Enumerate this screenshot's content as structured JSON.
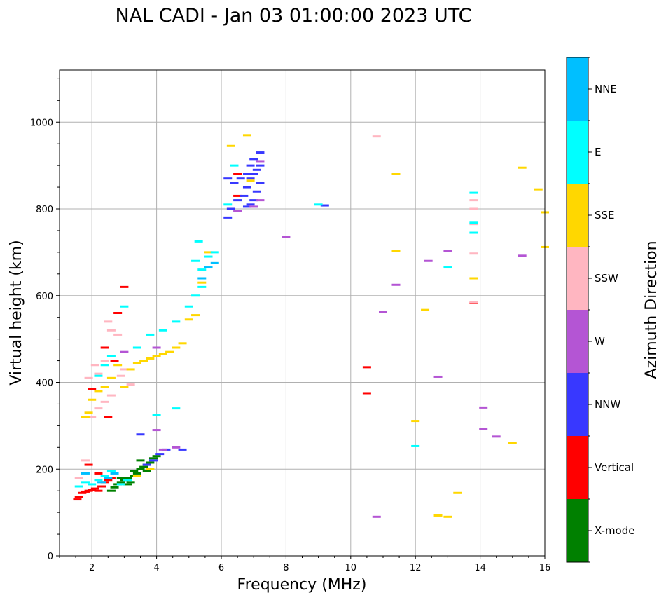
{
  "chart_data": {
    "type": "scatter",
    "title": "NAL CADI - Jan 03 01:00:00 2023 UTC",
    "xlabel": "Frequency (MHz)",
    "ylabel": "Virtual height (km)",
    "xlim": [
      1,
      16
    ],
    "ylim": [
      0,
      1120
    ],
    "xticks": [
      2,
      4,
      6,
      8,
      10,
      12,
      14,
      16
    ],
    "xtick_labels": [
      "2",
      "4",
      "6",
      "8",
      "10",
      "12",
      "14",
      "16"
    ],
    "yticks": [
      0,
      200,
      400,
      600,
      800,
      1000
    ],
    "ytick_labels": [
      "0",
      "200",
      "400",
      "600",
      "800",
      "1000"
    ],
    "grid": true,
    "colorbar": {
      "label": "Azimuth Direction",
      "categories": [
        "X-mode",
        "Vertical",
        "NNW",
        "W",
        "SSW",
        "SSE",
        "E",
        "NNE"
      ],
      "colors": [
        "#008000",
        "#ff0000",
        "#3838ff",
        "#b455d4",
        "#ffb6c1",
        "#ffd700",
        "#00ffff",
        "#00bfff"
      ]
    },
    "series": [
      {
        "name": "X-mode",
        "points": [
          [
            2.6,
            150
          ],
          [
            2.7,
            158
          ],
          [
            2.8,
            165
          ],
          [
            2.9,
            170
          ],
          [
            3.0,
            175
          ],
          [
            3.1,
            165
          ],
          [
            3.2,
            170
          ],
          [
            3.3,
            185
          ],
          [
            3.4,
            190
          ],
          [
            3.5,
            200
          ],
          [
            3.6,
            205
          ],
          [
            3.7,
            210
          ],
          [
            3.8,
            215
          ],
          [
            3.9,
            225
          ],
          [
            4.0,
            230
          ],
          [
            3.3,
            195
          ],
          [
            3.5,
            220
          ],
          [
            2.9,
            180
          ],
          [
            3.1,
            180
          ],
          [
            3.7,
            195
          ]
        ]
      },
      {
        "name": "Vertical",
        "points": [
          [
            1.55,
            130
          ],
          [
            1.6,
            135
          ],
          [
            1.7,
            145
          ],
          [
            1.8,
            148
          ],
          [
            1.9,
            150
          ],
          [
            2.0,
            152
          ],
          [
            2.1,
            155
          ],
          [
            2.2,
            150
          ],
          [
            2.3,
            160
          ],
          [
            2.4,
            170
          ],
          [
            2.5,
            175
          ],
          [
            2.6,
            180
          ],
          [
            2.2,
            190
          ],
          [
            1.9,
            210
          ],
          [
            2.5,
            320
          ],
          [
            2.8,
            560
          ],
          [
            3.0,
            620
          ],
          [
            2.0,
            385
          ],
          [
            10.5,
            375
          ],
          [
            10.5,
            435
          ],
          [
            13.8,
            583
          ],
          [
            6.5,
            830
          ],
          [
            6.5,
            880
          ],
          [
            2.7,
            450
          ],
          [
            2.4,
            480
          ]
        ]
      },
      {
        "name": "NNW",
        "points": [
          [
            3.5,
            280
          ],
          [
            3.7,
            210
          ],
          [
            3.9,
            220
          ],
          [
            4.1,
            235
          ],
          [
            4.3,
            245
          ],
          [
            4.8,
            245
          ],
          [
            6.2,
            780
          ],
          [
            6.3,
            800
          ],
          [
            6.5,
            820
          ],
          [
            6.7,
            830
          ],
          [
            6.8,
            850
          ],
          [
            6.9,
            870
          ],
          [
            7.0,
            880
          ],
          [
            7.1,
            890
          ],
          [
            7.2,
            900
          ],
          [
            6.8,
            880
          ],
          [
            6.9,
            900
          ],
          [
            7.0,
            915
          ],
          [
            6.9,
            810
          ],
          [
            7.1,
            840
          ],
          [
            7.2,
            860
          ],
          [
            6.6,
            870
          ],
          [
            6.2,
            870
          ],
          [
            7.0,
            820
          ],
          [
            7.2,
            930
          ],
          [
            9.2,
            808
          ],
          [
            6.4,
            860
          ],
          [
            6.8,
            805
          ]
        ]
      },
      {
        "name": "W",
        "points": [
          [
            4.0,
            290
          ],
          [
            4.2,
            245
          ],
          [
            4.6,
            250
          ],
          [
            4.0,
            480
          ],
          [
            7.0,
            805
          ],
          [
            7.2,
            820
          ],
          [
            8.0,
            735
          ],
          [
            10.8,
            90
          ],
          [
            11.0,
            563
          ],
          [
            11.4,
            625
          ],
          [
            12.4,
            680
          ],
          [
            12.7,
            413
          ],
          [
            13.0,
            703
          ],
          [
            14.1,
            342
          ],
          [
            14.1,
            293
          ],
          [
            14.5,
            275
          ],
          [
            15.3,
            692
          ],
          [
            7.2,
            910
          ],
          [
            6.5,
            795
          ],
          [
            3.0,
            470
          ]
        ]
      },
      {
        "name": "SSW",
        "points": [
          [
            1.6,
            180
          ],
          [
            1.8,
            220
          ],
          [
            2.0,
            320
          ],
          [
            2.2,
            340
          ],
          [
            2.4,
            355
          ],
          [
            2.6,
            370
          ],
          [
            2.2,
            420
          ],
          [
            2.4,
            450
          ],
          [
            2.6,
            520
          ],
          [
            2.8,
            510
          ],
          [
            3.0,
            430
          ],
          [
            3.2,
            395
          ],
          [
            1.9,
            410
          ],
          [
            2.1,
            440
          ],
          [
            10.8,
            967
          ],
          [
            13.8,
            820
          ],
          [
            13.8,
            800
          ],
          [
            13.8,
            697
          ],
          [
            13.8,
            585
          ],
          [
            13.8,
            765
          ],
          [
            2.5,
            540
          ],
          [
            2.9,
            415
          ]
        ]
      },
      {
        "name": "SSE",
        "points": [
          [
            1.8,
            320
          ],
          [
            1.9,
            330
          ],
          [
            2.0,
            360
          ],
          [
            2.2,
            380
          ],
          [
            2.4,
            390
          ],
          [
            2.6,
            410
          ],
          [
            2.8,
            440
          ],
          [
            3.0,
            390
          ],
          [
            3.2,
            430
          ],
          [
            3.4,
            445
          ],
          [
            3.6,
            450
          ],
          [
            3.8,
            455
          ],
          [
            4.0,
            460
          ],
          [
            4.2,
            465
          ],
          [
            4.4,
            470
          ],
          [
            4.6,
            480
          ],
          [
            4.8,
            490
          ],
          [
            5.0,
            545
          ],
          [
            5.2,
            555
          ],
          [
            5.4,
            630
          ],
          [
            5.6,
            700
          ],
          [
            6.3,
            945
          ],
          [
            6.8,
            970
          ],
          [
            6.9,
            865
          ],
          [
            11.4,
            880
          ],
          [
            11.4,
            703
          ],
          [
            12.0,
            311
          ],
          [
            12.3,
            567
          ],
          [
            12.7,
            93
          ],
          [
            13.0,
            90
          ],
          [
            13.3,
            145
          ],
          [
            13.8,
            640
          ],
          [
            15.3,
            895
          ],
          [
            15.8,
            845
          ],
          [
            16.0,
            792
          ],
          [
            16.0,
            712
          ],
          [
            15.0,
            260
          ],
          [
            3.8,
            200
          ],
          [
            3.4,
            185
          ]
        ]
      },
      {
        "name": "E",
        "points": [
          [
            1.6,
            160
          ],
          [
            1.8,
            170
          ],
          [
            2.0,
            165
          ],
          [
            2.2,
            175
          ],
          [
            2.4,
            185
          ],
          [
            2.6,
            195
          ],
          [
            2.2,
            415
          ],
          [
            2.4,
            440
          ],
          [
            2.6,
            460
          ],
          [
            3.0,
            575
          ],
          [
            3.4,
            480
          ],
          [
            3.8,
            510
          ],
          [
            4.2,
            520
          ],
          [
            4.6,
            540
          ],
          [
            5.0,
            575
          ],
          [
            5.2,
            600
          ],
          [
            5.4,
            620
          ],
          [
            5.6,
            690
          ],
          [
            5.8,
            700
          ],
          [
            5.3,
            725
          ],
          [
            6.2,
            810
          ],
          [
            6.4,
            900
          ],
          [
            4.0,
            325
          ],
          [
            4.6,
            340
          ],
          [
            9.0,
            810
          ],
          [
            12.0,
            253
          ],
          [
            13.0,
            665
          ],
          [
            13.8,
            837
          ],
          [
            13.8,
            768
          ],
          [
            13.8,
            745
          ],
          [
            5.4,
            660
          ],
          [
            5.2,
            680
          ],
          [
            3.1,
            175
          ],
          [
            2.9,
            165
          ]
        ]
      },
      {
        "name": "NNE",
        "points": [
          [
            2.3,
            170
          ],
          [
            2.5,
            180
          ],
          [
            2.7,
            190
          ],
          [
            1.8,
            190
          ],
          [
            5.6,
            665
          ],
          [
            5.8,
            675
          ],
          [
            5.4,
            640
          ]
        ]
      }
    ]
  }
}
